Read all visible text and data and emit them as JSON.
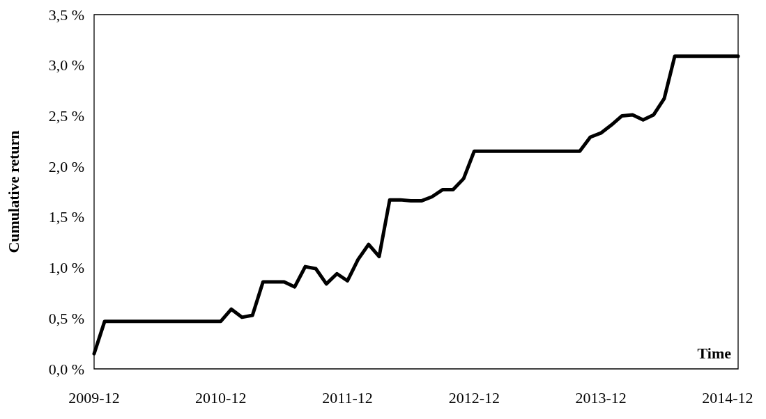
{
  "chart_data": {
    "type": "line",
    "xlabel": "Time",
    "ylabel": "Cumulative return",
    "categories": [
      "2009-12",
      null,
      null,
      null,
      null,
      null,
      null,
      null,
      null,
      null,
      null,
      null,
      "2010-12",
      null,
      null,
      null,
      null,
      null,
      null,
      null,
      null,
      null,
      null,
      null,
      "2011-12",
      null,
      null,
      null,
      null,
      null,
      null,
      null,
      null,
      null,
      null,
      null,
      "2012-12",
      null,
      null,
      null,
      null,
      null,
      null,
      null,
      null,
      null,
      null,
      null,
      "2013-12",
      null,
      null,
      null,
      null,
      null,
      null,
      null,
      null,
      null,
      null,
      null,
      "2014-12",
      null
    ],
    "series": [
      {
        "color": "#000000",
        "values": [
          0.15,
          0.47,
          0.47,
          0.47,
          0.47,
          0.47,
          0.47,
          0.47,
          0.47,
          0.47,
          0.47,
          0.47,
          0.47,
          0.59,
          0.51,
          0.53,
          0.86,
          0.86,
          0.86,
          0.81,
          1.01,
          0.99,
          0.84,
          0.94,
          0.87,
          1.08,
          1.23,
          1.11,
          1.67,
          1.67,
          1.66,
          1.66,
          1.7,
          1.77,
          1.77,
          1.88,
          2.15,
          2.15,
          2.15,
          2.15,
          2.15,
          2.15,
          2.15,
          2.15,
          2.15,
          2.15,
          2.15,
          2.29,
          2.33,
          2.41,
          2.5,
          2.51,
          2.46,
          2.51,
          2.67,
          3.09,
          3.09,
          3.09,
          3.09,
          3.09,
          3.09,
          3.09
        ]
      }
    ],
    "ylim": [
      0,
      3.5
    ],
    "yticks": [
      {
        "value": 0,
        "label": "0,0 %"
      },
      {
        "value": 0.5,
        "label": "0,5 %"
      },
      {
        "value": 1,
        "label": "1,0 %"
      },
      {
        "value": 1.5,
        "label": "1,5 %"
      },
      {
        "value": 2,
        "label": "2,0 %"
      },
      {
        "value": 2.5,
        "label": "2,5 %"
      },
      {
        "value": 3,
        "label": "3,0 %"
      },
      {
        "value": 3.5,
        "label": "3,5 %"
      }
    ],
    "grid": false,
    "marker": "none",
    "line_style": "solid"
  }
}
